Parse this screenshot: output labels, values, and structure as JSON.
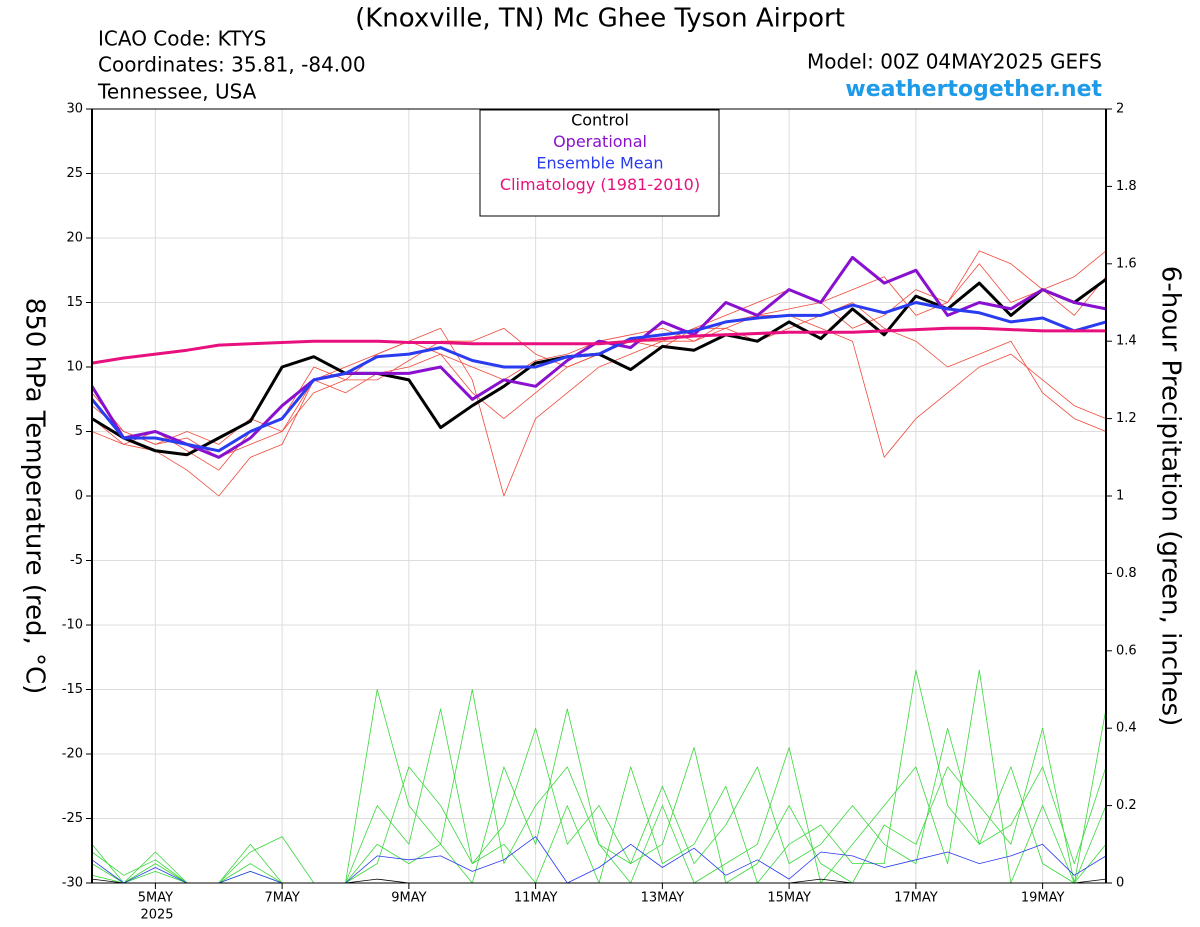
{
  "chart_data": {
    "type": "line",
    "title": "(Knoxville, TN) Mc Ghee Tyson Airport",
    "info_left": [
      "ICAO Code: KTYS",
      "Coordinates: 35.81, -84.00",
      "Tennessee, USA"
    ],
    "model": "Model: 00Z 04MAY2025 GEFS",
    "site": "weathertogether.net",
    "ylabel": "850 hPa Temperature (red, °C)",
    "y2label": "6-hour Precipitation (green, inches)",
    "x_sublabel": "2025",
    "categories": [
      null,
      null,
      "5MAY",
      null,
      null,
      null,
      "7MAY",
      null,
      null,
      null,
      "9MAY",
      null,
      null,
      null,
      "11MAY",
      null,
      null,
      null,
      "13MAY",
      null,
      null,
      null,
      "15MAY",
      null,
      null,
      null,
      "17MAY",
      null,
      null,
      null,
      "19MAY",
      null,
      null
    ],
    "ylim": [
      -30,
      30
    ],
    "yticks": [
      -30,
      -25,
      -20,
      -15,
      -10,
      -5,
      0,
      5,
      10,
      15,
      20,
      25,
      30
    ],
    "y2lim": [
      0,
      2
    ],
    "y2ticks": [
      0,
      0.2,
      0.4,
      0.6,
      0.8,
      1,
      1.2,
      1.4,
      1.6,
      1.8,
      2
    ],
    "series": [
      {
        "color": "#f04a3a",
        "values": [
          7,
          5,
          4,
          4.5,
          3,
          4,
          5,
          9,
          8,
          9.5,
          10,
          11,
          10,
          9,
          10.5,
          11,
          12,
          12.5,
          13,
          12,
          13.5,
          14,
          14.5,
          15,
          13,
          14,
          16,
          15,
          18,
          15,
          16,
          14,
          17
        ]
      },
      {
        "color": "#f04a3a",
        "values": [
          6,
          4,
          5,
          3.5,
          2,
          5,
          6,
          10,
          9,
          11,
          12,
          11,
          8,
          6,
          8,
          10,
          11,
          12,
          11.5,
          13,
          13,
          14,
          14,
          13,
          12,
          3,
          6,
          8,
          10,
          11,
          9,
          7,
          6
        ]
      },
      {
        "color": "#f04a3a",
        "values": [
          8,
          5,
          4,
          5,
          4,
          6,
          5,
          8,
          9,
          9,
          10.5,
          12,
          12,
          13,
          11,
          10,
          11,
          12,
          12,
          13,
          14,
          15,
          16,
          15,
          16,
          17,
          14,
          15,
          19,
          18,
          16,
          17,
          19
        ]
      },
      {
        "color": "#f04a3a",
        "values": [
          5,
          4,
          3.5,
          2,
          0,
          3,
          4,
          9,
          10,
          11,
          12,
          13,
          9,
          0,
          6,
          8,
          10,
          11,
          12,
          12,
          13,
          12,
          13,
          14,
          15,
          13,
          12,
          10,
          11,
          12,
          8,
          6,
          5
        ]
      },
      {
        "color": "#3ad83a",
        "axis": "y2",
        "values": [
          0.1,
          0,
          0.05,
          0,
          0,
          0.1,
          0,
          0,
          0,
          0.5,
          0.2,
          0.1,
          0,
          0.3,
          0.1,
          0.45,
          0.1,
          0,
          0.2,
          0,
          0.05,
          0.1,
          0.35,
          0,
          0.1,
          0.2,
          0.3,
          0.05,
          0.55,
          0,
          0.2,
          0,
          0.1
        ]
      },
      {
        "color": "#3ad83a",
        "axis": "y2",
        "values": [
          0.05,
          0,
          0.03,
          0,
          0,
          0.05,
          0,
          0,
          0,
          0.2,
          0.1,
          0.45,
          0.05,
          0.1,
          0,
          0.2,
          0,
          0.3,
          0.05,
          0.1,
          0.25,
          0,
          0.1,
          0.15,
          0.05,
          0.05,
          0.55,
          0.2,
          0.1,
          0.3,
          0.05,
          0,
          0.2
        ]
      },
      {
        "color": "#3ad83a",
        "axis": "y2",
        "values": [
          0.08,
          0.02,
          0.06,
          0,
          0,
          0.08,
          0.12,
          0,
          0,
          0.05,
          0.3,
          0.2,
          0.05,
          0.15,
          0.4,
          0.1,
          0.2,
          0.05,
          0.1,
          0.35,
          0,
          0.05,
          0.2,
          0.05,
          0,
          0.15,
          0.1,
          0.3,
          0.2,
          0.1,
          0.4,
          0,
          0.45
        ]
      },
      {
        "color": "#3ad83a",
        "axis": "y2",
        "values": [
          0.02,
          0,
          0.08,
          0,
          0,
          0.03,
          0,
          0,
          0,
          0.1,
          0.05,
          0.1,
          0.5,
          0.05,
          0.2,
          0.3,
          0.1,
          0.05,
          0.25,
          0.05,
          0.15,
          0.3,
          0.05,
          0.1,
          0.2,
          0.1,
          0.05,
          0.4,
          0.1,
          0.15,
          0.3,
          0.05,
          0.3
        ]
      },
      {
        "color": "#2a3cf0",
        "axis": "y2",
        "values": [
          0.06,
          0,
          0.04,
          0,
          0,
          0.03,
          0,
          0,
          0,
          0.07,
          0.06,
          0.07,
          0.03,
          0.06,
          0.12,
          0,
          0.04,
          0.1,
          0.04,
          0.09,
          0.02,
          0.06,
          0.01,
          0.08,
          0.07,
          0.04,
          0.06,
          0.08,
          0.05,
          0.07,
          0.1,
          0.02,
          0.07
        ]
      },
      {
        "color": "#000000",
        "axis": "y2",
        "values": [
          0.01,
          0,
          0,
          0,
          0,
          0,
          0,
          0,
          0,
          0.01,
          0,
          0,
          0,
          0,
          0,
          0,
          0,
          0,
          0,
          0,
          0,
          0,
          0,
          0.01,
          0,
          0,
          0,
          0,
          0,
          0,
          0,
          0,
          0.01
        ]
      },
      {
        "name": "Control",
        "color": "#000000",
        "values": [
          6,
          4.5,
          3.5,
          3.2,
          4.5,
          5.8,
          10,
          10.8,
          9.5,
          9.5,
          9,
          5.3,
          7,
          8.5,
          10.3,
          10.8,
          11,
          9.8,
          11.6,
          11.3,
          12.5,
          12,
          13.5,
          12.2,
          14.5,
          12.5,
          15.5,
          14.5,
          16.5,
          14,
          16,
          15,
          16.8
        ]
      },
      {
        "name": "Operational",
        "color": "#8a10d0",
        "values": [
          8.5,
          4.5,
          5,
          4,
          3,
          4.5,
          7,
          9,
          9.5,
          9.5,
          9.5,
          10,
          7.5,
          9,
          8.5,
          10.5,
          12,
          11.5,
          13.5,
          12.5,
          15,
          14,
          16,
          15,
          18.5,
          16.5,
          17.5,
          14,
          15,
          14.5,
          16,
          15,
          14.5
        ]
      },
      {
        "name": "Ensemble Mean",
        "color": "#2a3cf0",
        "values": [
          7.5,
          4.5,
          4.5,
          4,
          3.5,
          5,
          6,
          9,
          9.5,
          10.8,
          11,
          11.5,
          10.5,
          10,
          10,
          10.8,
          11,
          12.2,
          12.5,
          12.8,
          13.5,
          13.8,
          14,
          14,
          14.8,
          14.2,
          15,
          14.5,
          14.2,
          13.5,
          13.8,
          12.8,
          13.5
        ]
      },
      {
        "name": "Climatology (1981-2010)",
        "color": "#e8107e",
        "values": [
          10.3,
          10.7,
          11,
          11.3,
          11.7,
          11.8,
          11.9,
          12,
          12,
          12,
          11.9,
          11.9,
          11.8,
          11.8,
          11.8,
          11.8,
          11.8,
          12,
          12.2,
          12.4,
          12.5,
          12.6,
          12.7,
          12.7,
          12.7,
          12.8,
          12.9,
          13,
          13,
          12.9,
          12.8,
          12.8,
          12.8
        ]
      }
    ]
  }
}
